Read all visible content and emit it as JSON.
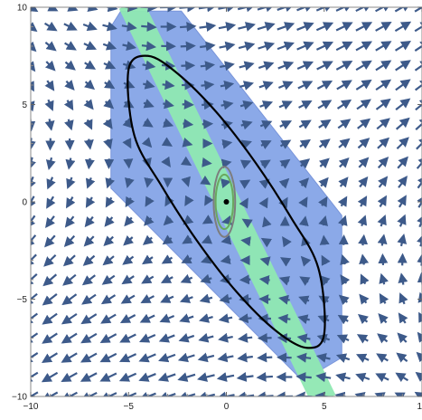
{
  "chart_data": {
    "type": "vector-field",
    "title": "",
    "xlabel": "",
    "ylabel": "",
    "xlim": [
      -10,
      10
    ],
    "ylim": [
      -10,
      10
    ],
    "x_ticks": [
      -10,
      -5,
      0,
      5,
      10
    ],
    "y_ticks": [
      -10,
      -5,
      0,
      5,
      10
    ],
    "x_tick_labels": [
      "−10",
      "−5",
      "0",
      "5",
      "10"
    ],
    "y_tick_labels": [
      "−10",
      "−5",
      "0",
      "5",
      "10"
    ],
    "grid": false,
    "vector_field": {
      "grid_x": [
        -10,
        -9,
        -8,
        -7,
        -6,
        -5,
        -4,
        -3,
        -2,
        -1,
        0,
        1,
        2,
        3,
        4,
        5,
        6,
        7,
        8,
        9,
        10
      ],
      "grid_y": [
        -10,
        -9,
        -8,
        -7,
        -6,
        -5,
        -4,
        -3,
        -2,
        -1,
        0,
        1,
        2,
        3,
        4,
        5,
        6,
        7,
        8,
        9,
        10
      ],
      "u": "x + y",
      "v": "x + y",
      "color": "#3d5a8a"
    },
    "regions": [
      {
        "kind": "polygon",
        "color": "#7fa0e6",
        "points": [
          [
            -5.4,
            9.8
          ],
          [
            -2.3,
            9.8
          ],
          [
            5.9,
            -0.7
          ],
          [
            5.9,
            -8.0
          ],
          [
            3.9,
            -9.2
          ],
          [
            -5.9,
            0.7
          ],
          [
            -5.9,
            9.0
          ]
        ]
      },
      {
        "kind": "band",
        "color": "#8fe8b2",
        "from": [
          -4.9,
          10.2
        ],
        "to": [
          5.0,
          -10.2
        ],
        "width": 1.3
      }
    ],
    "curves": [
      {
        "kind": "closed-curve",
        "color": "#000000",
        "points": [
          [
            -4.0,
            7.5
          ],
          [
            -2.5,
            6.6
          ],
          [
            -0.5,
            4.6
          ],
          [
            1.5,
            2.0
          ],
          [
            3.3,
            -0.8
          ],
          [
            4.7,
            -3.4
          ],
          [
            5.0,
            -6.8
          ],
          [
            4.1,
            -7.5
          ],
          [
            2.5,
            -6.6
          ],
          [
            0.5,
            -4.6
          ],
          [
            -1.5,
            -2.0
          ],
          [
            -3.3,
            0.8
          ],
          [
            -4.7,
            3.4
          ],
          [
            -5.0,
            6.8
          ]
        ]
      },
      {
        "kind": "ellipse",
        "color": "#7d7d7d",
        "center": [
          -0.1,
          0.0
        ],
        "rx": 0.55,
        "ry": 1.8
      },
      {
        "kind": "ellipse",
        "color": "#6aa85f",
        "center": [
          -0.1,
          0.0
        ],
        "rx": 0.45,
        "ry": 1.4
      }
    ],
    "points": [
      {
        "x": 0.0,
        "y": 0.0,
        "color": "#000000"
      }
    ]
  }
}
